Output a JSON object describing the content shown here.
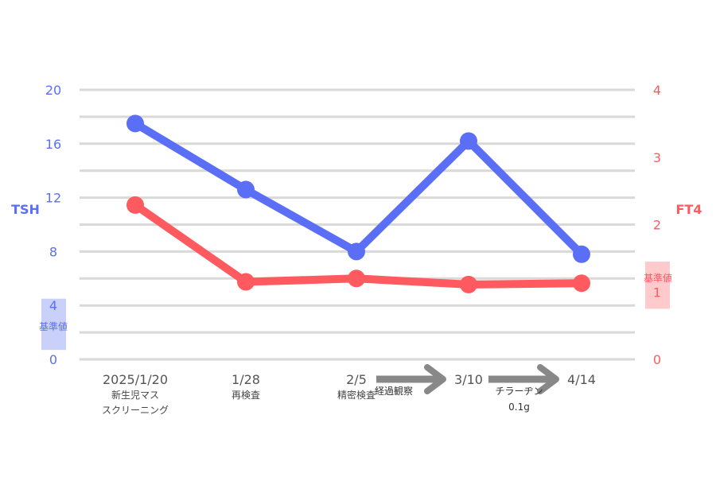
{
  "chart_data": {
    "type": "line",
    "categories": [
      "2025/1/20",
      "1/28",
      "2/5",
      "3/10",
      "4/14"
    ],
    "category_notes": [
      [
        "新生児マス",
        "スクリーニング"
      ],
      [
        "再検査"
      ],
      [
        "精密検査"
      ],
      [],
      []
    ],
    "series": [
      {
        "name": "TSH",
        "axis": "left",
        "color": "#5A6FF5",
        "values": [
          17.5,
          12.6,
          8.0,
          16.2,
          7.8
        ]
      },
      {
        "name": "FT4",
        "axis": "right",
        "color": "#FF5A5F",
        "values": [
          2.29,
          1.15,
          1.2,
          1.11,
          1.13
        ]
      }
    ],
    "left_axis": {
      "label": "TSH",
      "ylim": [
        0,
        20
      ],
      "ticks": [
        "0",
        "4",
        "8",
        "12",
        "16",
        "20"
      ],
      "color": "#5A6FF5"
    },
    "right_axis": {
      "label": "FT4",
      "ylim": [
        0,
        4
      ],
      "ticks": [
        "0",
        "1",
        "2",
        "3",
        "4"
      ],
      "color": "#FF5A5F"
    },
    "reference_ranges": [
      {
        "axis": "left",
        "label": "基準値",
        "range": [
          0.7,
          4.5
        ],
        "color": "#C9D0FA"
      },
      {
        "axis": "right",
        "label": "基準値",
        "range": [
          0.75,
          1.45
        ],
        "color": "#FFCACC"
      }
    ],
    "annotations": [
      {
        "from": 2,
        "to": 3,
        "lines": [
          "経過観察"
        ]
      },
      {
        "from": 3,
        "to": 4,
        "lines": [
          "チラーヂン",
          "0.1g"
        ]
      }
    ],
    "grid": true
  }
}
